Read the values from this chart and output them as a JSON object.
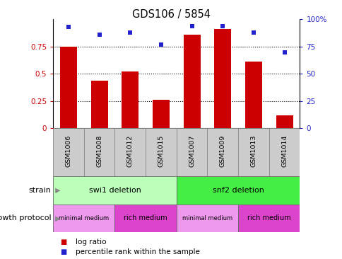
{
  "title": "GDS106 / 5854",
  "samples": [
    "GSM1006",
    "GSM1008",
    "GSM1012",
    "GSM1015",
    "GSM1007",
    "GSM1009",
    "GSM1013",
    "GSM1014"
  ],
  "log_ratio": [
    0.75,
    0.44,
    0.52,
    0.26,
    0.86,
    0.91,
    0.61,
    0.12
  ],
  "percentile_rank": [
    93,
    86,
    88,
    77,
    94,
    94,
    88,
    70
  ],
  "bar_color": "#cc0000",
  "dot_color": "#2222cc",
  "ylim_left": [
    0,
    1.0
  ],
  "ylim_right": [
    0,
    100
  ],
  "yticks_left": [
    0,
    0.25,
    0.5,
    0.75
  ],
  "ytick_labels_left": [
    "0",
    "0.25",
    "0.5",
    "0.75"
  ],
  "yticks_right": [
    0,
    25,
    50,
    75,
    100
  ],
  "ytick_labels_right": [
    "0",
    "25",
    "50",
    "75",
    "100%"
  ],
  "strain_labels": [
    "swi1 deletion",
    "snf2 deletion"
  ],
  "strain_color_light": "#bbffbb",
  "strain_color_dark": "#44ee44",
  "growth_protocol_labels": [
    "minimal medium",
    "rich medium",
    "minimal medium",
    "rich medium"
  ],
  "growth_protocol_color_light": "#ee99ee",
  "growth_protocol_color_dark": "#dd44cc",
  "dotted_lines": [
    0.25,
    0.5,
    0.75
  ],
  "legend_bar_color": "#cc0000",
  "legend_dot_color": "#2222cc",
  "legend_text1": "log ratio",
  "legend_text2": "percentile rank within the sample",
  "arrow_color": "#888888",
  "label_bg": "#cccccc",
  "bar_width": 0.55
}
